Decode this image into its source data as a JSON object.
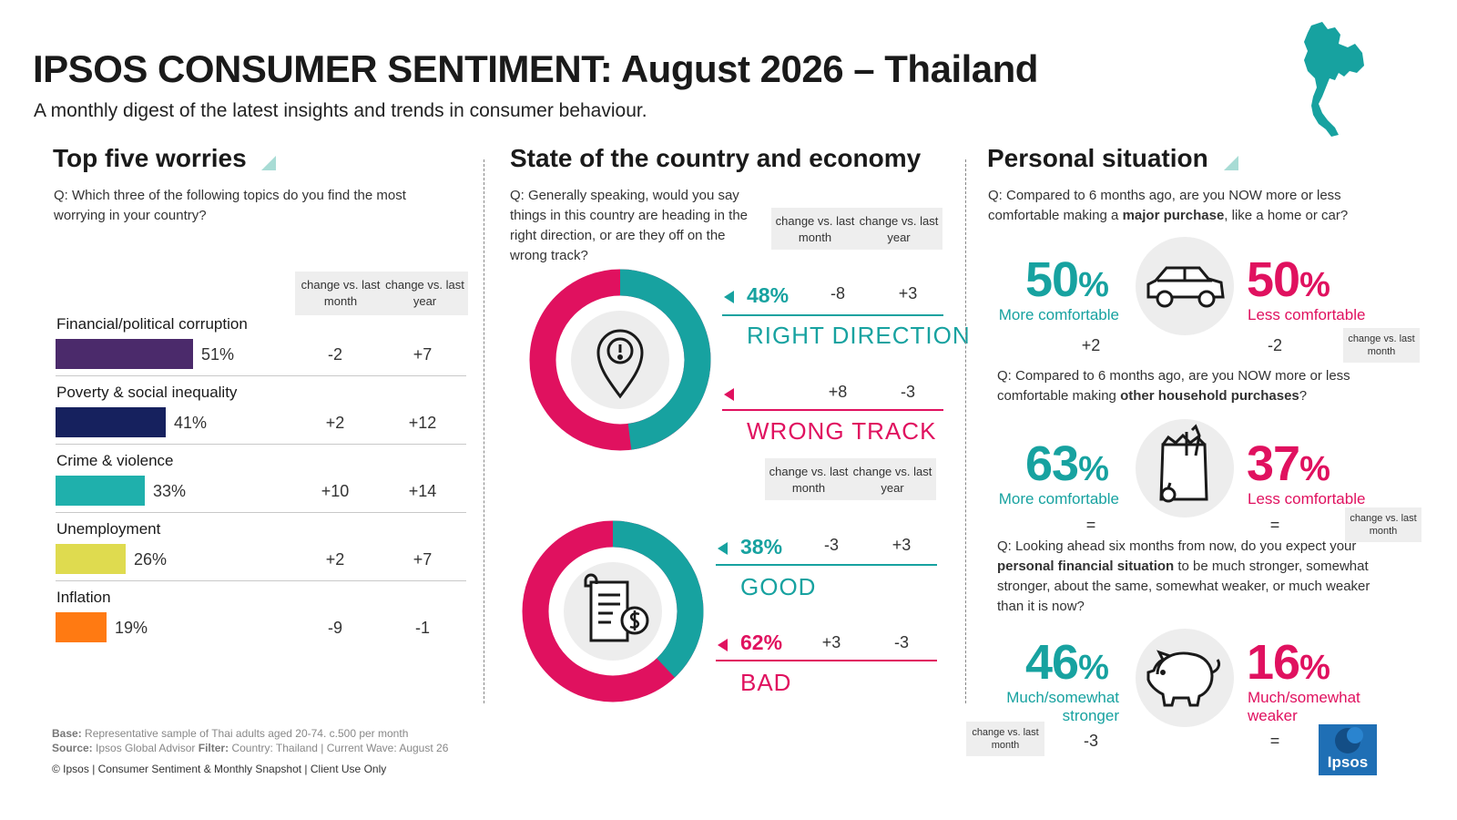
{
  "header": {
    "title": "IPSOS CONSUMER SENTIMENT: August 2026 – Thailand",
    "subtitle": "A monthly digest of the latest insights and trends in consumer behaviour."
  },
  "worries": {
    "title": "Top five worries",
    "question": "Q: Which three of the following topics do you find the most worrying in your country?",
    "col_month": "change vs. last month",
    "col_year": "change vs. last year",
    "items": [
      {
        "label": "Financial/political corruption",
        "value": 51,
        "pct": "51%",
        "month": "-2",
        "year": "+7",
        "color": "#4b2a6b"
      },
      {
        "label": "Poverty & social inequality",
        "value": 41,
        "pct": "41%",
        "month": "+2",
        "year": "+12",
        "color": "#16215e"
      },
      {
        "label": "Crime & violence",
        "value": 33,
        "pct": "33%",
        "month": "+10",
        "year": "+14",
        "color": "#1fb0ac"
      },
      {
        "label": "Unemployment",
        "value": 26,
        "pct": "26%",
        "month": "+2",
        "year": "+7",
        "color": "#dfdb4f"
      },
      {
        "label": "Inflation",
        "value": 19,
        "pct": "19%",
        "month": "-9",
        "year": "-1",
        "color": "#ff7a12"
      }
    ]
  },
  "country": {
    "title": "State of the country and economy",
    "question": "Q: Generally speaking, would you say things in this country are heading in the right direction, or are they off on the wrong track?",
    "col_month": "change vs. last month",
    "col_year": "change vs. last year",
    "direction": {
      "teal_value": 48,
      "right": {
        "pct": "48%",
        "label": "RIGHT DIRECTION",
        "month": "-8",
        "year": "+3"
      },
      "wrong": {
        "pct": "",
        "label": "WRONG TRACK",
        "month": "+8",
        "year": "-3"
      }
    },
    "economy": {
      "teal_value": 38,
      "good": {
        "pct": "38%",
        "label": "GOOD",
        "month": "-3",
        "year": "+3"
      },
      "bad": {
        "pct": "62%",
        "label": "BAD",
        "month": "+3",
        "year": "-3"
      }
    },
    "colors": {
      "teal": "#17a2a0",
      "pink": "#e0115f"
    }
  },
  "personal": {
    "title": "Personal situation",
    "change_label": "change vs. last month",
    "q1": {
      "pre": "Q: Compared to 6 months ago, are you NOW more or less comfortable making a ",
      "bold": "major purchase",
      "post": ", like a home or car?",
      "more": "50",
      "more_label": "More comfortable",
      "less": "50",
      "less_label": "Less comfortable",
      "more_change": "+2",
      "less_change": "-2",
      "icon": "car-icon"
    },
    "q2": {
      "pre": "Q: Compared to 6 months ago, are you NOW more or less comfortable making ",
      "bold": "other household purchases",
      "post": "?",
      "more": "63",
      "more_label": "More comfortable",
      "less": "37",
      "less_label": "Less comfortable",
      "more_change": "=",
      "less_change": "=",
      "icon": "grocery-bag-icon"
    },
    "q3": {
      "pre": "Q: Looking ahead six months from now, do you expect your ",
      "bold": "personal financial situation",
      "post": " to be much stronger, somewhat stronger, about the same, somewhat weaker, or much weaker than it is now?",
      "more": "46",
      "more_label": "Much/somewhat stronger",
      "less": "16",
      "less_label": "Much/somewhat weaker",
      "more_change": "-3",
      "less_change": "=",
      "icon": "piggy-bank-icon"
    },
    "pct_sign": "%"
  },
  "footer": {
    "base_label": "Base:",
    "base_text": "Representative sample of Thai adults aged 20-74. c.500 per month",
    "source_label": "Source:",
    "source_text": "Ipsos Global Advisor",
    "filter_label": "Filter:",
    "filter_text": "Country: Thailand | Current Wave: August 26",
    "copyright": "© Ipsos | Consumer Sentiment & Monthly Snapshot | Client Use Only"
  },
  "brand": {
    "logo_text": "Ipsos",
    "logo_color": "#1f6fb5",
    "map_color": "#17a2a0"
  }
}
